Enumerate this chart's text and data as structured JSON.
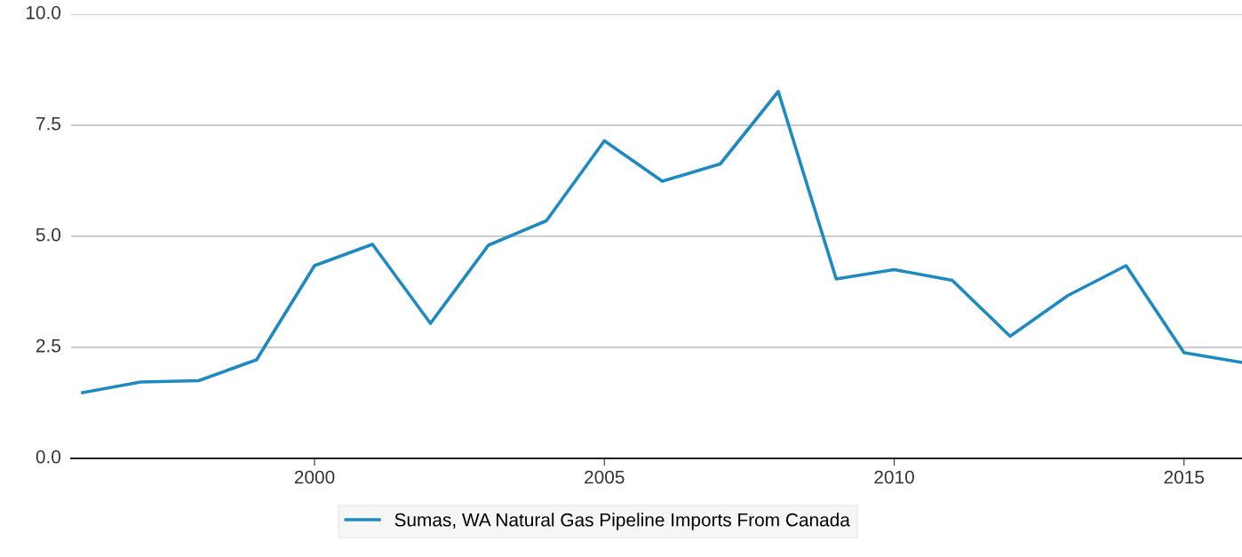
{
  "chart_data": {
    "type": "line",
    "x": [
      1996,
      1997,
      1998,
      1999,
      2000,
      2001,
      2002,
      2003,
      2004,
      2005,
      2006,
      2007,
      2008,
      2009,
      2010,
      2011,
      2012,
      2013,
      2014,
      2015,
      2016
    ],
    "series": [
      {
        "name": "Sumas, WA Natural Gas Pipeline Imports From Canada",
        "color": "#1f8ac0",
        "values": [
          1.48,
          1.72,
          1.75,
          2.22,
          4.34,
          4.82,
          3.04,
          4.8,
          5.35,
          7.15,
          6.24,
          6.63,
          8.26,
          4.04,
          4.25,
          4.01,
          2.75,
          3.67,
          4.34,
          2.38,
          2.16
        ]
      }
    ],
    "xlim": [
      1995.8,
      2016
    ],
    "xticks": [
      2000,
      2005,
      2010,
      2015
    ],
    "ylim": [
      0,
      10
    ],
    "yticks": [
      {
        "value": 0,
        "label": "0.0"
      },
      {
        "value": 2.5,
        "label": "2.5"
      },
      {
        "value": 5,
        "label": "5.0"
      },
      {
        "value": 7.5,
        "label": "7.5"
      },
      {
        "value": 10,
        "label": "10.0"
      }
    ],
    "grid": "y",
    "legend": "bottom",
    "marker": "none",
    "line_style": "solid"
  }
}
